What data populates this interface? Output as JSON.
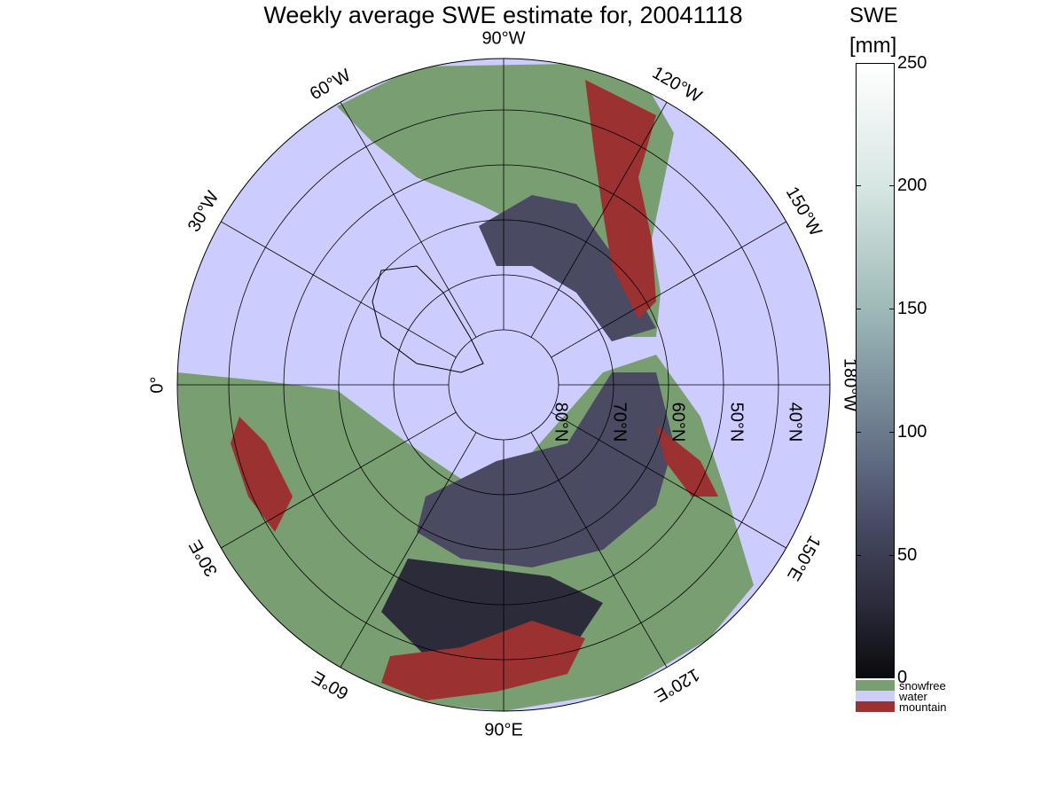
{
  "title": "Weekly average SWE estimate for, 20041118",
  "map": {
    "lon_labels": [
      {
        "text": "90°W",
        "angle": -90
      },
      {
        "text": "60°W",
        "angle": -120
      },
      {
        "text": "120°W",
        "angle": -60
      },
      {
        "text": "30°W",
        "angle": -150
      },
      {
        "text": "150°W",
        "angle": -30
      },
      {
        "text": "0°",
        "angle": 180
      },
      {
        "text": "180°W",
        "angle": 0
      },
      {
        "text": "30°E",
        "angle": 150
      },
      {
        "text": "150°E",
        "angle": 30
      },
      {
        "text": "60°E",
        "angle": 120
      },
      {
        "text": "120°E",
        "angle": 60
      },
      {
        "text": "90°E",
        "angle": 90
      }
    ],
    "lat_labels": [
      "80°N",
      "70°N",
      "60°N",
      "50°N",
      "40°N"
    ],
    "colors": {
      "water": "#ccccff",
      "snowfree": "#789e72",
      "mountain": "#9b3130",
      "snow": "#4a4a62"
    }
  },
  "colorbar": {
    "title_line1": "SWE",
    "title_line2": "[mm]",
    "ticks": [
      "250",
      "200",
      "150",
      "100",
      "50",
      "0"
    ],
    "categories": [
      {
        "label": "snowfree",
        "color": "#789e72"
      },
      {
        "label": "water",
        "color": "#ccccff"
      },
      {
        "label": "mountain",
        "color": "#9b3130"
      }
    ]
  }
}
